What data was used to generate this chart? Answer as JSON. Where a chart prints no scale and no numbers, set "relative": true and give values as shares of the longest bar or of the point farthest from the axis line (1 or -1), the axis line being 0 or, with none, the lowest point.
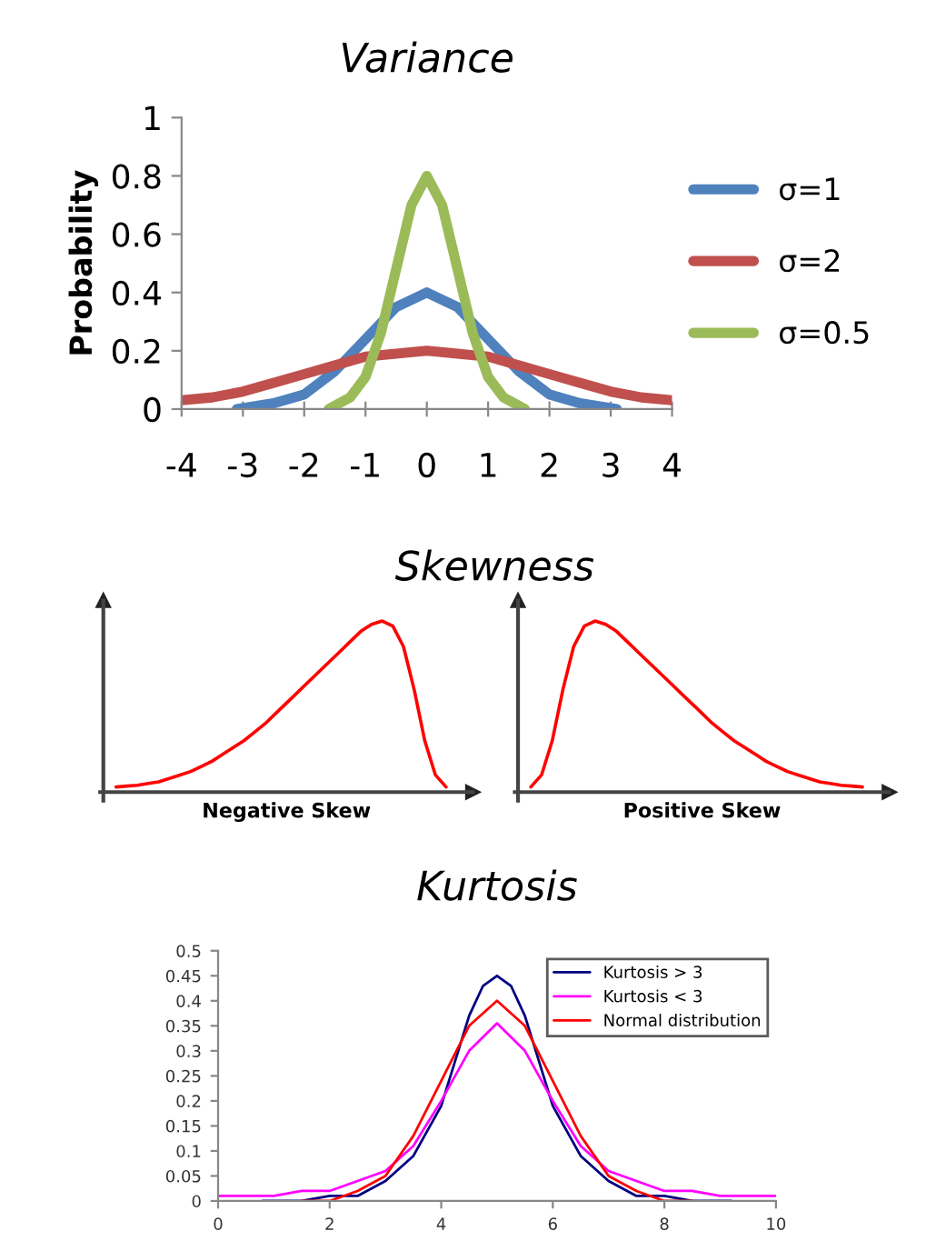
{
  "chart_data": [
    {
      "type": "line",
      "title": "Variance",
      "ylabel": "Probability",
      "xlim": [
        -4,
        4
      ],
      "xticks": [
        -4,
        -3,
        -2,
        -1,
        0,
        1,
        2,
        3,
        4
      ],
      "ylim": [
        0,
        1
      ],
      "yticks": [
        0,
        0.2,
        0.4,
        0.6,
        0.8,
        1
      ],
      "legend": "right",
      "grid": false,
      "marker": "none",
      "line_style": "solid",
      "series": [
        {
          "name": "σ=1",
          "color": "#4f81bd",
          "x": [
            -3.1,
            -2.5,
            -2,
            -1.5,
            -1,
            -0.5,
            0,
            0.5,
            1,
            1.5,
            2,
            2.5,
            3.1
          ],
          "values": [
            0,
            0.02,
            0.05,
            0.13,
            0.24,
            0.35,
            0.4,
            0.35,
            0.24,
            0.13,
            0.05,
            0.02,
            0
          ]
        },
        {
          "name": "σ=2",
          "color": "#c0504d",
          "x": [
            -4,
            -3.5,
            -3,
            -2.5,
            -2,
            -1.5,
            -1,
            -0.5,
            0,
            0.5,
            1,
            1.5,
            2,
            2.5,
            3,
            3.5,
            4
          ],
          "values": [
            0.03,
            0.04,
            0.06,
            0.09,
            0.12,
            0.15,
            0.18,
            0.19,
            0.2,
            0.19,
            0.18,
            0.15,
            0.12,
            0.09,
            0.06,
            0.04,
            0.03
          ]
        },
        {
          "name": "σ=0.5",
          "color": "#9bbb59",
          "x": [
            -1.6,
            -1.25,
            -1,
            -0.75,
            -0.5,
            -0.25,
            0,
            0.25,
            0.5,
            0.75,
            1,
            1.25,
            1.6
          ],
          "values": [
            0,
            0.04,
            0.11,
            0.26,
            0.48,
            0.7,
            0.8,
            0.7,
            0.48,
            0.26,
            0.11,
            0.04,
            0
          ]
        }
      ]
    },
    {
      "type": "line",
      "title": "Skewness",
      "xlabel": "Negative Skew",
      "relative": true,
      "marker": "none",
      "line_style": "solid",
      "categories": [
        null,
        null,
        null,
        null,
        null,
        null,
        null,
        null,
        null,
        null,
        null,
        null,
        null,
        null,
        null,
        null,
        null,
        null,
        null,
        null,
        null,
        null,
        null,
        null,
        null,
        null,
        null,
        null,
        null,
        null,
        null,
        null
      ],
      "series": [
        {
          "color": "#ff0000",
          "values": [
            0.03,
            0.035,
            0.04,
            0.05,
            0.06,
            0.08,
            0.1,
            0.12,
            0.15,
            0.18,
            0.22,
            0.26,
            0.3,
            0.35,
            0.4,
            0.46,
            0.52,
            0.58,
            0.64,
            0.7,
            0.76,
            0.82,
            0.88,
            0.94,
            0.98,
            1,
            0.97,
            0.85,
            0.6,
            0.3,
            0.1,
            0.03
          ]
        }
      ]
    },
    {
      "type": "line",
      "xlabel": "Positive Skew",
      "relative": true,
      "marker": "none",
      "line_style": "solid",
      "categories": [
        null,
        null,
        null,
        null,
        null,
        null,
        null,
        null,
        null,
        null,
        null,
        null,
        null,
        null,
        null,
        null,
        null,
        null,
        null,
        null,
        null,
        null,
        null,
        null,
        null,
        null,
        null,
        null,
        null,
        null,
        null,
        null
      ],
      "series": [
        {
          "color": "#ff0000",
          "values": [
            0.03,
            0.1,
            0.3,
            0.6,
            0.85,
            0.97,
            1,
            0.98,
            0.94,
            0.88,
            0.82,
            0.76,
            0.7,
            0.64,
            0.58,
            0.52,
            0.46,
            0.4,
            0.35,
            0.3,
            0.26,
            0.22,
            0.18,
            0.15,
            0.12,
            0.1,
            0.08,
            0.06,
            0.05,
            0.04,
            0.035,
            0.03
          ]
        }
      ]
    },
    {
      "type": "line",
      "title": "Kurtosis",
      "xlim": [
        0,
        10
      ],
      "xticks": [
        0,
        2,
        4,
        6,
        8,
        10
      ],
      "ylim": [
        0,
        0.5
      ],
      "yticks": [
        0,
        0.05,
        0.1,
        0.15,
        0.2,
        0.25,
        0.3,
        0.35,
        0.4,
        0.45,
        0.5
      ],
      "legend": "top right",
      "grid": false,
      "marker": "none",
      "line_style": "solid",
      "series": [
        {
          "name": "Kurtosis > 3",
          "color": "#000080",
          "x": [
            0.8,
            1.5,
            2,
            2.5,
            3,
            3.5,
            4,
            4.25,
            4.5,
            4.75,
            5,
            5.25,
            5.5,
            5.75,
            6,
            6.5,
            7,
            7.5,
            8,
            8.5,
            9.2
          ],
          "values": [
            0,
            0,
            0.01,
            0.01,
            0.04,
            0.09,
            0.19,
            0.28,
            0.37,
            0.43,
            0.45,
            0.43,
            0.37,
            0.28,
            0.19,
            0.09,
            0.04,
            0.01,
            0.01,
            0,
            0
          ]
        },
        {
          "name": "Kurtosis < 3",
          "color": "#ff00ff",
          "x": [
            0,
            1,
            1.5,
            2,
            2.5,
            3,
            3.5,
            4,
            4.5,
            5,
            5.5,
            6,
            6.5,
            7,
            7.5,
            8,
            8.5,
            9,
            10
          ],
          "values": [
            0.01,
            0.01,
            0.02,
            0.02,
            0.04,
            0.06,
            0.11,
            0.2,
            0.3,
            0.355,
            0.3,
            0.2,
            0.11,
            0.06,
            0.04,
            0.02,
            0.02,
            0.01,
            0.01
          ]
        },
        {
          "name": "Normal distribution",
          "color": "#ff0000",
          "x": [
            1.5,
            2,
            2.5,
            3,
            3.5,
            4,
            4.5,
            5,
            5.5,
            6,
            6.5,
            7,
            7.5,
            8,
            8.5
          ],
          "values": [
            0,
            0,
            0.02,
            0.05,
            0.13,
            0.24,
            0.35,
            0.4,
            0.35,
            0.24,
            0.13,
            0.05,
            0.02,
            0,
            0
          ]
        }
      ]
    }
  ]
}
